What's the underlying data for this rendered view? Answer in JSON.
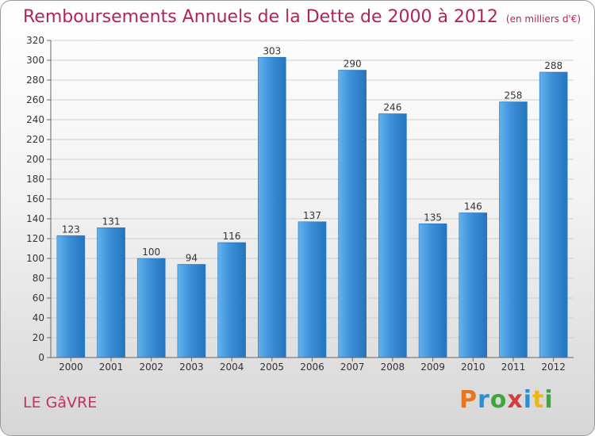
{
  "title": "Remboursements Annuels de la Dette de 2000 à 2012",
  "unit": "(en milliers d'€)",
  "commune": "LE GâVRE",
  "logo": {
    "text": "Proxiti",
    "colors": [
      "#e8761f",
      "#2a8fd4",
      "#3ca83c",
      "#d93a3a",
      "#2a8fd4",
      "#e8b81f",
      "#3ca83c"
    ]
  },
  "colors": {
    "bar": "#3c8fd8",
    "bar_light": "#63b2ee",
    "bar_dark": "#2575bd",
    "title": "#b0245a"
  },
  "chart_data": {
    "type": "bar",
    "categories": [
      "2000",
      "2001",
      "2002",
      "2003",
      "2004",
      "2005",
      "2006",
      "2007",
      "2008",
      "2009",
      "2010",
      "2011",
      "2012"
    ],
    "values": [
      123,
      131,
      100,
      94,
      116,
      303,
      137,
      290,
      246,
      135,
      146,
      258,
      288
    ],
    "ylim": [
      0,
      320
    ],
    "yticks": [
      0,
      20,
      40,
      60,
      80,
      100,
      120,
      140,
      160,
      180,
      200,
      220,
      240,
      260,
      280,
      300,
      320
    ],
    "grid": true,
    "data_labels": true
  }
}
